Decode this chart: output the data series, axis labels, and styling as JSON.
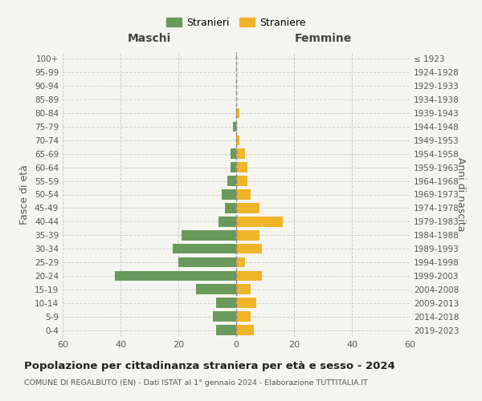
{
  "age_groups": [
    "0-4",
    "5-9",
    "10-14",
    "15-19",
    "20-24",
    "25-29",
    "30-34",
    "35-39",
    "40-44",
    "45-49",
    "50-54",
    "55-59",
    "60-64",
    "65-69",
    "70-74",
    "75-79",
    "80-84",
    "85-89",
    "90-94",
    "95-99",
    "100+"
  ],
  "birth_years": [
    "2019-2023",
    "2014-2018",
    "2009-2013",
    "2004-2008",
    "1999-2003",
    "1994-1998",
    "1989-1993",
    "1984-1988",
    "1979-1983",
    "1974-1978",
    "1969-1973",
    "1964-1968",
    "1959-1963",
    "1954-1958",
    "1949-1953",
    "1944-1948",
    "1939-1943",
    "1934-1938",
    "1929-1933",
    "1924-1928",
    "≤ 1923"
  ],
  "males": [
    7,
    8,
    7,
    14,
    42,
    20,
    22,
    19,
    6,
    4,
    5,
    3,
    2,
    2,
    0,
    1,
    0,
    0,
    0,
    0,
    0
  ],
  "females": [
    6,
    5,
    7,
    5,
    9,
    3,
    9,
    8,
    16,
    8,
    5,
    4,
    4,
    3,
    1,
    0,
    1,
    0,
    0,
    0,
    0
  ],
  "male_color": "#6a9a5b",
  "female_color": "#f0b429",
  "background_color": "#f5f5f0",
  "grid_color": "#cccccc",
  "title": "Popolazione per cittadinanza straniera per età e sesso - 2024",
  "subtitle": "COMUNE DI REGALBUTO (EN) - Dati ISTAT al 1° gennaio 2024 - Elaborazione TUTTITALIA.IT",
  "xlabel_left": "Maschi",
  "xlabel_right": "Femmine",
  "ylabel_left": "Fasce di età",
  "ylabel_right": "Anni di nascita",
  "legend_male": "Stranieri",
  "legend_female": "Straniere",
  "xlim": 60
}
